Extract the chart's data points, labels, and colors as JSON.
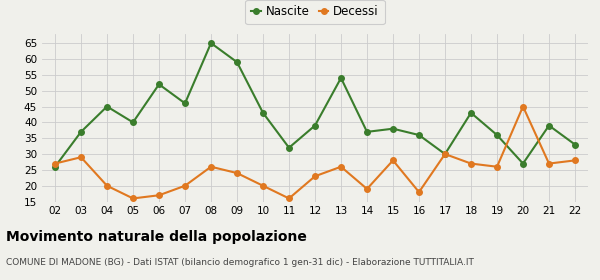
{
  "years": [
    "02",
    "03",
    "04",
    "05",
    "06",
    "07",
    "08",
    "09",
    "10",
    "11",
    "12",
    "13",
    "14",
    "15",
    "16",
    "17",
    "18",
    "19",
    "20",
    "21",
    "22"
  ],
  "nascite": [
    26,
    37,
    45,
    40,
    52,
    46,
    65,
    59,
    43,
    32,
    39,
    54,
    37,
    38,
    36,
    30,
    43,
    36,
    27,
    39,
    33
  ],
  "decessi": [
    27,
    29,
    20,
    16,
    17,
    20,
    26,
    24,
    20,
    16,
    23,
    26,
    19,
    28,
    18,
    30,
    27,
    26,
    45,
    27,
    28
  ],
  "nascite_color": "#3a7d2c",
  "decessi_color": "#e07820",
  "background_color": "#f0f0eb",
  "grid_color": "#cccccc",
  "ylim": [
    15,
    68
  ],
  "yticks": [
    15,
    20,
    25,
    30,
    35,
    40,
    45,
    50,
    55,
    60,
    65
  ],
  "title": "Movimento naturale della popolazione",
  "subtitle": "COMUNE DI MADONE (BG) - Dati ISTAT (bilancio demografico 1 gen-31 dic) - Elaborazione TUTTITALIA.IT",
  "legend_nascite": "Nascite",
  "legend_decessi": "Decessi",
  "marker_size": 4,
  "line_width": 1.5
}
